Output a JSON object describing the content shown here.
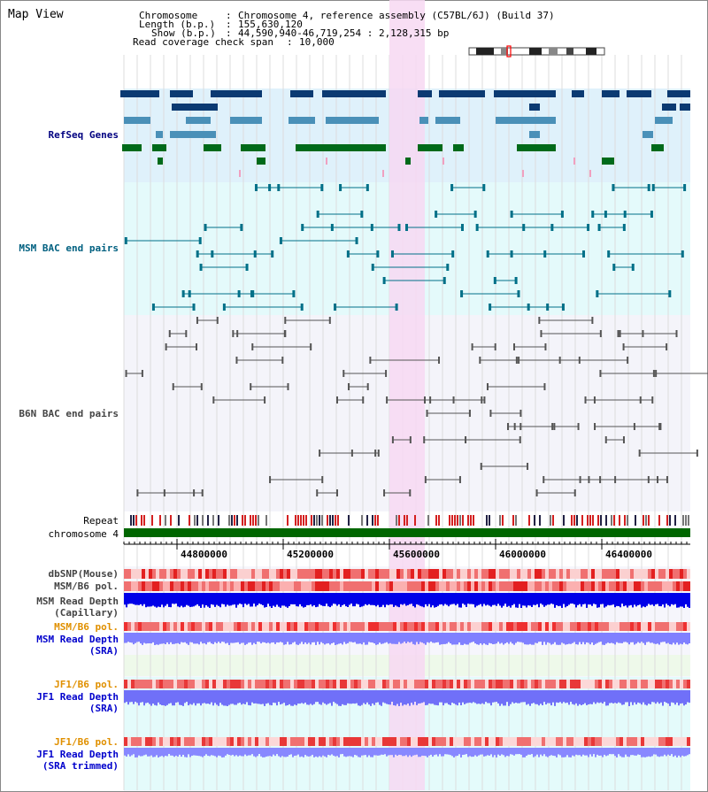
{
  "view_title": "Map View",
  "header": {
    "chromosome_label": "Chromosome",
    "chromosome_value": "Chromosome 4, reference assembly (C57BL/6J) (Build 37)",
    "length_label": "Length (b.p.)",
    "length_value": "155,630,120",
    "show_label": "Show (b.p.)",
    "show_value": "44,590,940-46,719,254 : 2,128,315 bp",
    "read_cov_label": "Read coverage check span",
    "read_cov_value": "10,000"
  },
  "tracks": {
    "refseq": "RefSeq Genes",
    "msm_bac": "MSM BAC end pairs",
    "b6n_bac": "B6N BAC end pairs",
    "repeat": "Repeat",
    "chromosome": "chromosome 4",
    "dbsnp": "dbSNP(Mouse)",
    "msm_b6_pol": "MSM/B6 pol.",
    "msm_read_depth_cap_1": "MSM Read Depth",
    "msm_read_depth_cap_2": "(Capillary)",
    "msm_b6_pol_sra": "MSM/B6 pol.",
    "msm_read_depth_sra_1": "MSM Read Depth",
    "msm_read_depth_sra_2": "(SRA)",
    "jf1_b6_pol_1": "JF1/B6 pol.",
    "jf1_read_depth_sra_1": "JF1 Read Depth",
    "jf1_read_depth_sra_2": "(SRA)",
    "jf1_b6_pol_2": "JF1/B6 pol.",
    "jf1_read_depth_trim_1": "JF1 Read Depth",
    "jf1_read_depth_trim_2": "(SRA trimmed)"
  },
  "axis": {
    "ticks": [
      "44800000",
      "45200000",
      "45600000",
      "46000000",
      "46400000"
    ]
  },
  "colors": {
    "refseq_bg": "#dff1fb",
    "bac_bg": "#e4fafb",
    "highlight": "#f7d8f2",
    "gene_navy": "#0b3a72",
    "gene_teal": "#4a90b8",
    "gene_green": "#006a1a",
    "chrom_bar": "#006600",
    "red": "#e8413d",
    "blue": "#0000ee",
    "lavender": "#8888ff"
  }
}
